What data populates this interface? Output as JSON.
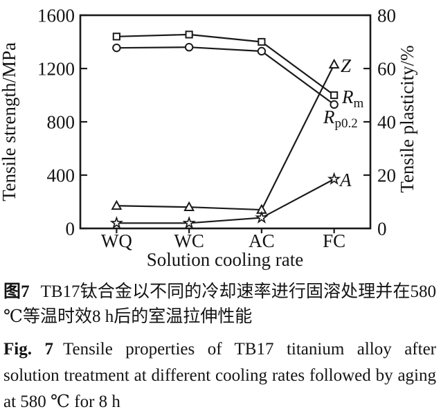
{
  "figure": {
    "caption_cn_label": "图7",
    "caption_cn_text": "TB17钛合金以不同的冷却速率进行固溶处理并在580 ℃等温时效8 h后的室温拉伸性能",
    "caption_en_label": "Fig. 7",
    "caption_en_text": "Tensile properties of TB17 titanium alloy after solution treatment at different cooling rates followed by aging at 580 ℃ for 8 h"
  },
  "colors": {
    "ink": "#1a1a1a",
    "background": "#ffffff"
  },
  "chart_data": {
    "type": "line",
    "title": "",
    "categories": [
      "WQ",
      "WC",
      "AC",
      "FC"
    ],
    "xlabel": "Solution cooling rate",
    "ylabel_left": "Tensile strength/MPa",
    "ylabel_right": "Tensile plasticity/%",
    "ylim_left": [
      0,
      1600
    ],
    "ylim_right": [
      0,
      80
    ],
    "yticks_left": [
      0,
      400,
      800,
      1200,
      1600
    ],
    "yticks_right": [
      0,
      20,
      40,
      60,
      80
    ],
    "grid": false,
    "legend_position": "inline-right-of-last-point",
    "series": [
      {
        "name": "Rm",
        "label_main": "R",
        "label_sub": "m",
        "axis": "left",
        "unit": "MPa",
        "marker": "square",
        "values": [
          1440,
          1455,
          1400,
          1000
        ]
      },
      {
        "name": "Rp0.2",
        "label_main": "R",
        "label_sub": "p0.2",
        "axis": "left",
        "unit": "MPa",
        "marker": "circle",
        "values": [
          1355,
          1360,
          1330,
          930
        ]
      },
      {
        "name": "Z",
        "label_main": "Z",
        "label_sub": "",
        "axis": "right",
        "unit": "%",
        "marker": "triangle",
        "values": [
          8.5,
          8,
          7,
          61.5
        ]
      },
      {
        "name": "A",
        "label_main": "A",
        "label_sub": "",
        "axis": "right",
        "unit": "%",
        "marker": "star",
        "values": [
          2,
          2,
          4,
          18.5
        ]
      }
    ]
  }
}
